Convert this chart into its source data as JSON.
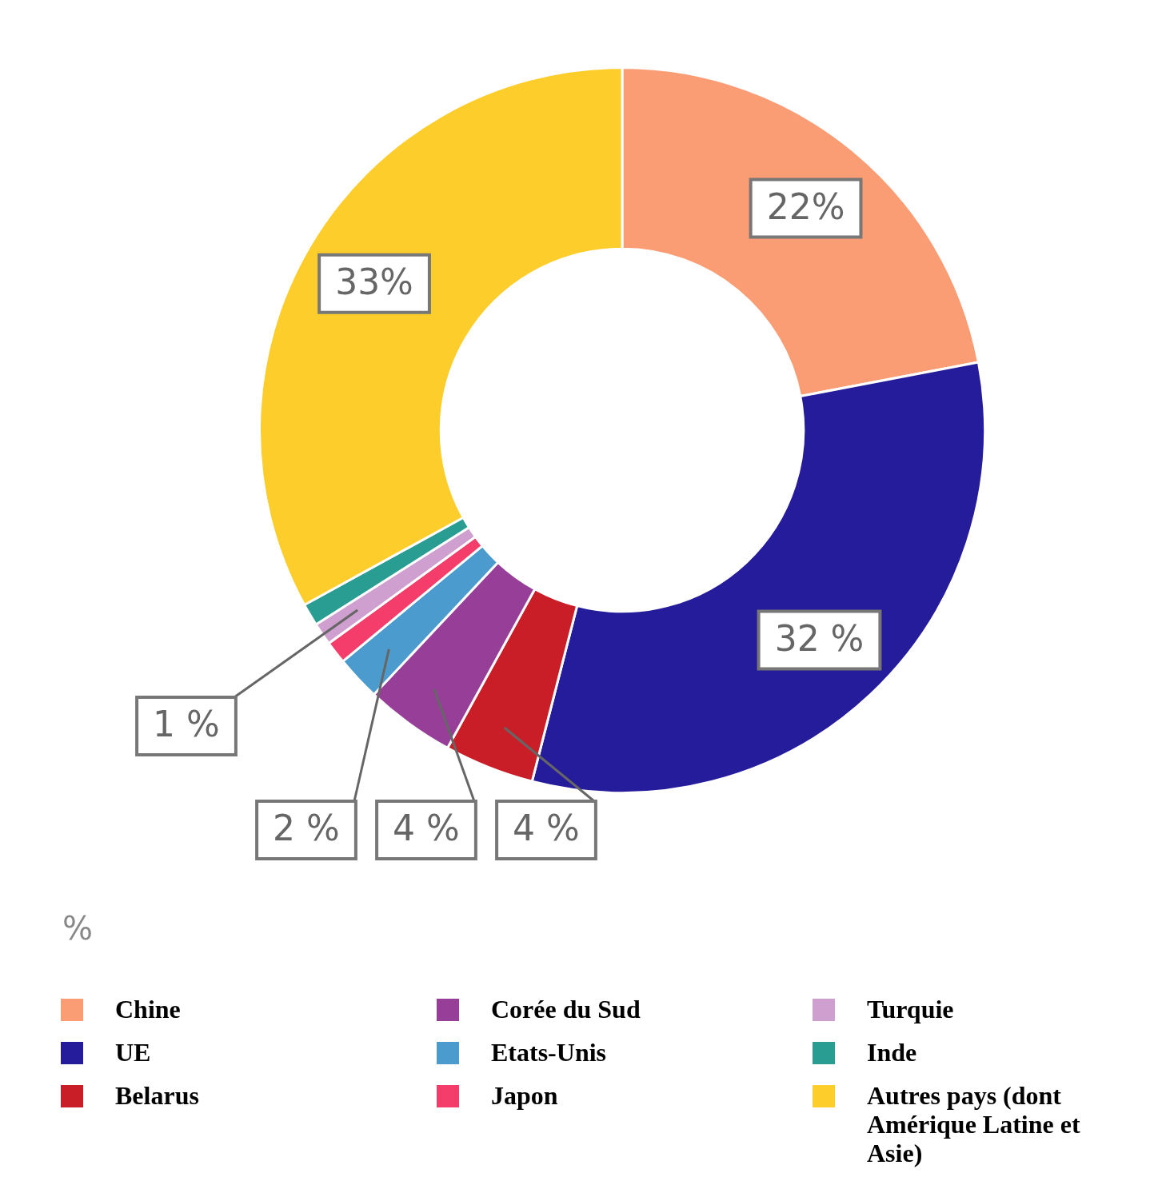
{
  "chart_data": {
    "type": "donut",
    "categories": [
      "Chine",
      "UE",
      "Belarus",
      "Corée du Sud",
      "Etats-Unis",
      "Japon",
      "Turquie",
      "Inde",
      "Autres pays (dont Amérique Latine et Asie)"
    ],
    "values": [
      22,
      32,
      4,
      4,
      2,
      1,
      1,
      1,
      33
    ],
    "colors": [
      "#fa9c74",
      "#241c9a",
      "#c91d27",
      "#973f98",
      "#4b9bcf",
      "#f43d6a",
      "#cf9fcf",
      "#2a9d93",
      "#fdcd2b"
    ],
    "value_labels": [
      "22%",
      "32 %",
      "4 %",
      "4 %",
      "2 %",
      null,
      "1 %",
      null,
      "33%"
    ],
    "annotations": [
      "%"
    ],
    "legend": "bottom"
  }
}
